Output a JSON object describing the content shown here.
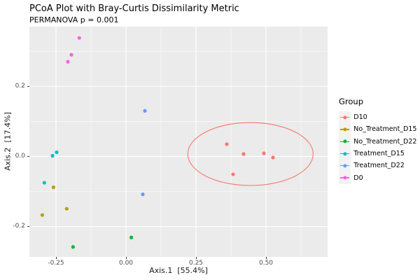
{
  "title": "PCoA Plot with Bray-Curtis Dissimilarity Metric",
  "subtitle": "PERMANOVA p = 0.001",
  "chart_data": {
    "type": "scatter",
    "title": "PCoA Plot with Bray-Curtis Dissimilarity Metric",
    "subtitle": "PERMANOVA p = 0.001",
    "xlabel": "Axis.1  [55.4%]",
    "ylabel": "Axis.2  [17.4%]",
    "xlim": [
      -0.345,
      0.72
    ],
    "ylim": [
      -0.2864,
      0.3703
    ],
    "x_ticks": [
      -0.25,
      0.0,
      0.25,
      0.5
    ],
    "y_ticks": [
      -0.2,
      0.0,
      0.2
    ],
    "x_tick_labels": [
      "-0.25",
      "0.00",
      "0.25",
      "0.50"
    ],
    "y_tick_labels": [
      "-0.2",
      "0.0",
      "0.2"
    ],
    "grid": true,
    "legend_title": "Group",
    "legend_position": "right",
    "panel_background": "#EBEBEB",
    "series": [
      {
        "name": "D10",
        "color": "#F8766D",
        "points": [
          [
            0.36,
            0.035
          ],
          [
            0.3825,
            -0.051
          ],
          [
            0.42,
            0.007
          ],
          [
            0.4925,
            0.009
          ],
          [
            0.525,
            -0.003
          ]
        ]
      },
      {
        "name": "No_Treatment_D15",
        "color": "#B79F00",
        "points": [
          [
            -0.259,
            -0.088
          ],
          [
            -0.2117,
            -0.149
          ],
          [
            -0.299,
            -0.167
          ]
        ]
      },
      {
        "name": "No_Treatment_D22",
        "color": "#00BA38",
        "points": [
          [
            0.019,
            -0.231
          ],
          [
            -0.189,
            -0.258
          ]
        ]
      },
      {
        "name": "Treatment_D15",
        "color": "#00BFC4",
        "points": [
          [
            -0.2475,
            0.012
          ],
          [
            -0.2625,
            0.002
          ],
          [
            -0.2917,
            -0.075
          ]
        ]
      },
      {
        "name": "Treatment_D22",
        "color": "#619CFF",
        "points": [
          [
            0.0675,
            0.13
          ],
          [
            0.06,
            -0.108
          ]
        ]
      },
      {
        "name": "D0",
        "color": "#F564E3",
        "points": [
          [
            -0.1667,
            0.338
          ],
          [
            -0.195,
            0.29
          ],
          [
            -0.2075,
            0.27
          ]
        ]
      }
    ],
    "ellipse": {
      "group": "D10",
      "color": "#F8766D",
      "cx": 0.4445,
      "cy": 0.007,
      "rx": 0.2238,
      "ry": 0.0898
    }
  }
}
